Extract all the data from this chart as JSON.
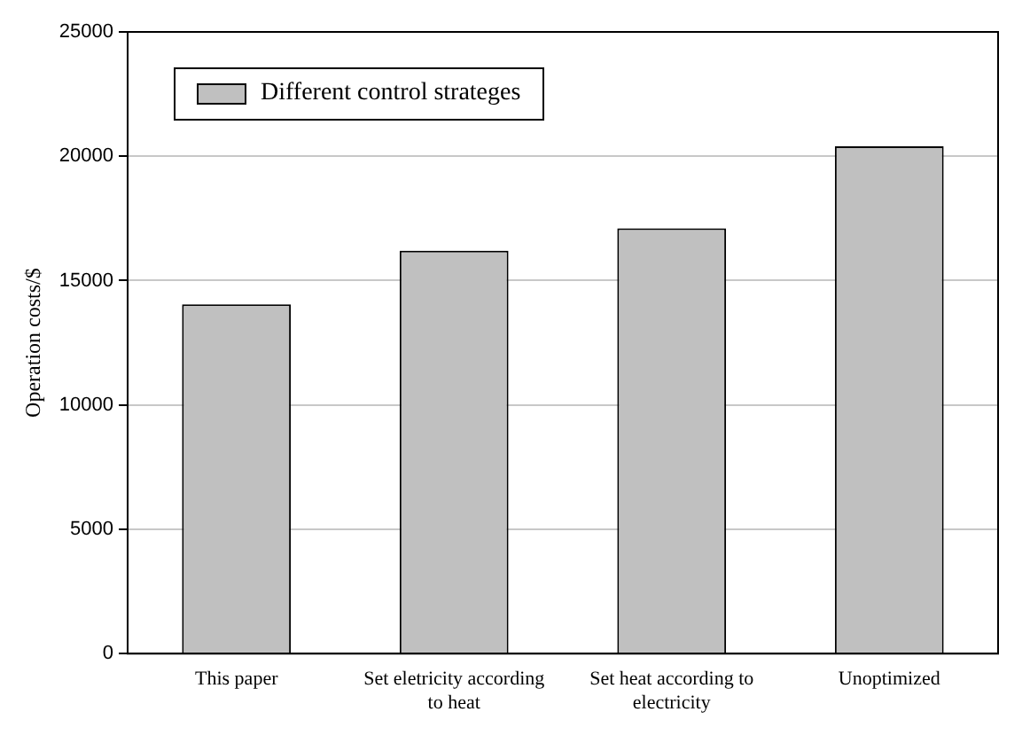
{
  "chart_data": {
    "type": "bar",
    "ylabel": "Operation costs/$",
    "categories": [
      "This paper",
      "Set eletricity according to heat",
      "Set heat according to electricity",
      "Unoptimized"
    ],
    "series": [
      {
        "name": "Different control strateges",
        "color": "#c0c0c0",
        "values": [
          14050,
          16200,
          17100,
          20400
        ]
      }
    ],
    "ylim": [
      0,
      25000
    ],
    "yticks": [
      0,
      5000,
      10000,
      15000,
      20000,
      25000
    ],
    "grid": "y",
    "legend": "top left"
  }
}
